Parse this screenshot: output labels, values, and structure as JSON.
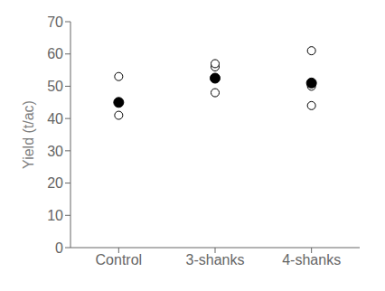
{
  "chart_data": {
    "type": "scatter",
    "categories": [
      "Control",
      "3-shanks",
      "4-shanks"
    ],
    "series": [
      {
        "color": "white",
        "marker": "circle",
        "values": [
          [
            41,
            53
          ],
          [
            48,
            56,
            57
          ],
          [
            44,
            50,
            61
          ]
        ]
      },
      {
        "color": "black",
        "marker": "circle",
        "values": [
          [
            45
          ],
          [
            52.5
          ],
          [
            51
          ]
        ]
      }
    ],
    "ylabel": "Yield (t/ac)",
    "ylim": [
      0,
      70
    ],
    "yticks": [
      0,
      10,
      20,
      30,
      40,
      50,
      60,
      70
    ],
    "grid": false
  }
}
